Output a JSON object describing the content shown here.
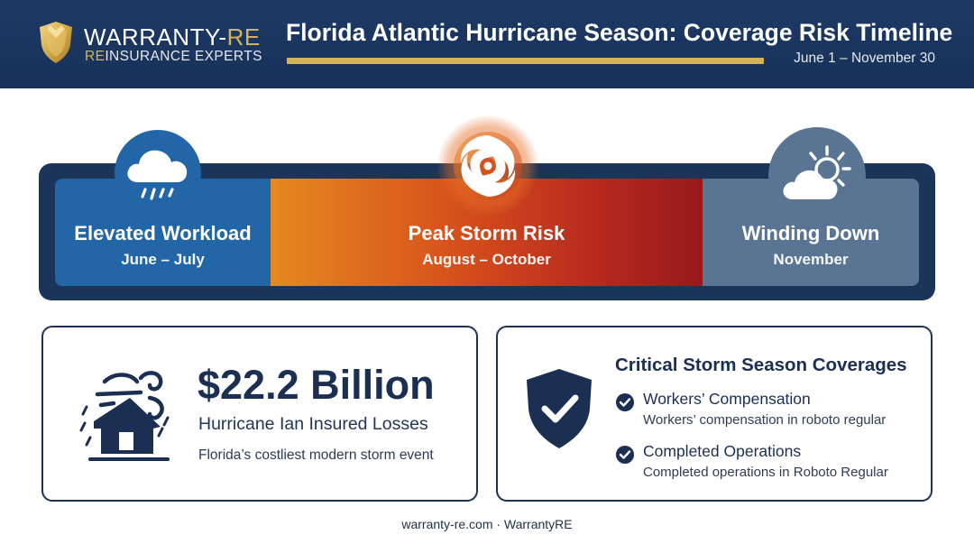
{
  "header": {
    "brand_name_main": "WARRANTY-",
    "brand_name_accent": "RE",
    "brand_tag_accent": "RE",
    "brand_tag_main": "INSURANCE EXPERTS",
    "title": "Florida Atlantic Hurricane Season: Coverage Risk Timeline",
    "season_dates": "June 1 – November 30",
    "accent_color": "#d4b35f",
    "background_color": "#1a3660"
  },
  "timeline": {
    "segments": [
      {
        "title": "Elevated Workload",
        "dates": "June – July",
        "icon": "rain-cloud-icon",
        "color": "#2366a8"
      },
      {
        "title": "Peak Storm Risk",
        "dates": "August – October",
        "icon": "hurricane-icon",
        "color": "#d8541c"
      },
      {
        "title": "Winding Down",
        "dates": "November",
        "icon": "partly-sunny-icon",
        "color": "#5a7593"
      }
    ]
  },
  "losses": {
    "amount": "$22.2 Billion",
    "label": "Hurricane Ian Insured Losses",
    "note": "Florida’s costliest modern storm event",
    "icon": "storm-house-icon"
  },
  "coverages": {
    "title": "Critical Storm Season Coverages",
    "icon": "shield-check-icon",
    "items": [
      {
        "name": "Workers’ Compensation",
        "description": "Workers’ compensation in roboto regular"
      },
      {
        "name": "Completed Operations",
        "description": "Completed operations in Roboto Regular"
      }
    ]
  },
  "footer": {
    "text": "warranty-re.com · WarrantyRE"
  }
}
